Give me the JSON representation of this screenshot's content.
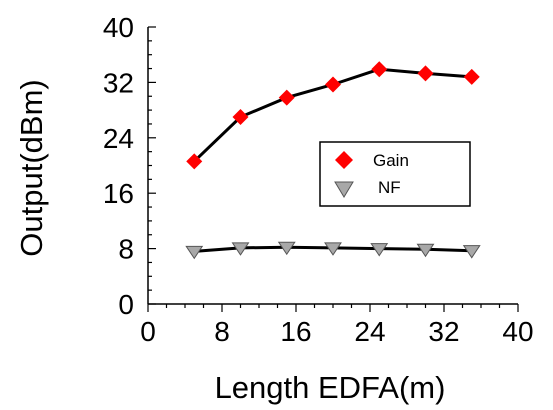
{
  "chart_data": {
    "type": "line",
    "title": "",
    "xlabel": "Length EDFA(m)",
    "ylabel": "Output(dBm)",
    "xlim": [
      0,
      40
    ],
    "ylim": [
      0,
      40
    ],
    "xticks": [
      "0",
      "8",
      "16",
      "24",
      "32",
      "40"
    ],
    "yticks": [
      "0",
      "8",
      "16",
      "24",
      "32",
      "40"
    ],
    "grid": false,
    "legend_position": "center-right",
    "series": [
      {
        "name": "Gain",
        "marker": "diamond",
        "marker_color": "#ff0000",
        "line_color": "#000000",
        "x": [
          5,
          10,
          15,
          20,
          25,
          30,
          35
        ],
        "y": [
          20.6,
          27.0,
          29.8,
          31.7,
          33.9,
          33.3,
          32.8
        ]
      },
      {
        "name": "NF",
        "marker": "triangle-down",
        "marker_color": "#a8a8a8",
        "line_color": "#000000",
        "x": [
          5,
          10,
          15,
          20,
          25,
          30,
          35
        ],
        "y": [
          7.6,
          8.1,
          8.2,
          8.1,
          8.0,
          7.9,
          7.7
        ]
      }
    ]
  }
}
